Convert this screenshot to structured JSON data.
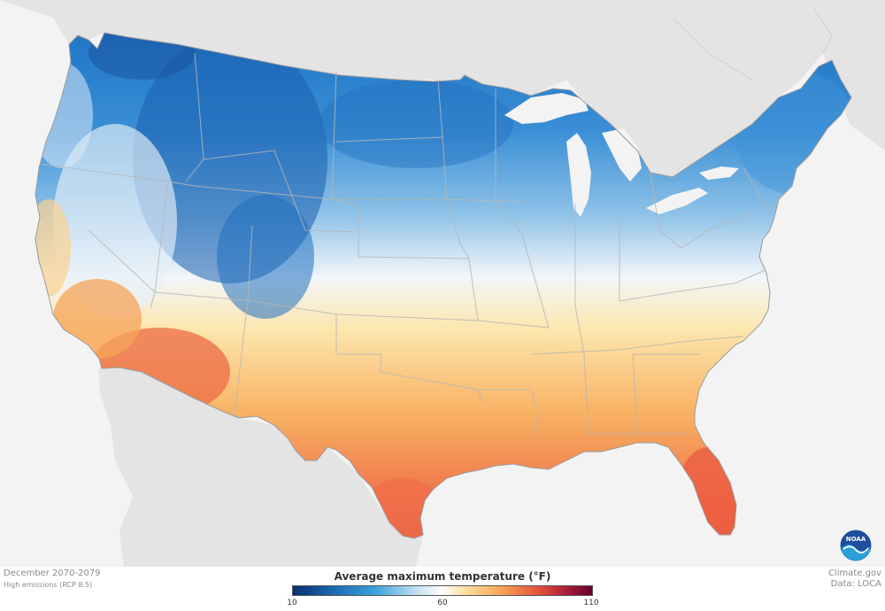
{
  "map": {
    "region": "contiguous-united-states",
    "variable": "average-maximum-temperature",
    "pattern": "cold blue north and Rockies, white mid-latitudes, orange/red south (Texas, Florida, desert Southwest)"
  },
  "footer": {
    "period": "December 2070-2079",
    "scenario": "High emissions (RCP 8.5)",
    "source": "Climate.gov",
    "data_credit": "Data: LOCA"
  },
  "legend": {
    "title": "Average maximum temperature (°F)",
    "ticks": [
      "10",
      "60",
      "110"
    ],
    "tick_values": [
      10,
      60,
      110
    ],
    "min": 10,
    "max": 110,
    "colors": [
      "#08306b",
      "#1a66b0",
      "#38a0dc",
      "#c9e2f2",
      "#fefefe",
      "#fde2a4",
      "#f7a256",
      "#e04b3a",
      "#a51c3a",
      "#660030"
    ]
  },
  "logo": {
    "icon": "noaa-logo",
    "text": "NOAA"
  }
}
